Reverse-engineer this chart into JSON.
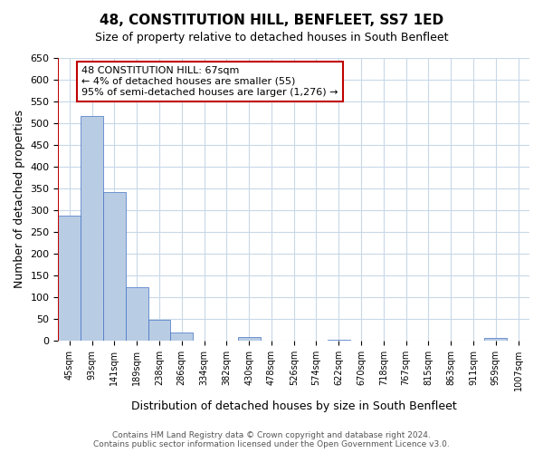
{
  "title": "48, CONSTITUTION HILL, BENFLEET, SS7 1ED",
  "subtitle": "Size of property relative to detached houses in South Benfleet",
  "bar_values": [
    287,
    516,
    341,
    122,
    48,
    19,
    0,
    0,
    7,
    0,
    0,
    0,
    2,
    0,
    0,
    0,
    0,
    0,
    0,
    5,
    0
  ],
  "bar_labels": [
    "45sqm",
    "93sqm",
    "141sqm",
    "189sqm",
    "238sqm",
    "286sqm",
    "334sqm",
    "382sqm",
    "430sqm",
    "478sqm",
    "526sqm",
    "574sqm",
    "622sqm",
    "670sqm",
    "718sqm",
    "767sqm",
    "815sqm",
    "863sqm",
    "911sqm",
    "959sqm",
    "1007sqm"
  ],
  "bar_color": "#b8cce4",
  "bar_edge_color": "#4472c4",
  "ylabel": "Number of detached properties",
  "xlabel": "Distribution of detached houses by size in South Benfleet",
  "ylim": [
    0,
    650
  ],
  "yticks": [
    0,
    50,
    100,
    150,
    200,
    250,
    300,
    350,
    400,
    450,
    500,
    550,
    600,
    650
  ],
  "vline_color": "#c00000",
  "annotation_title": "48 CONSTITUTION HILL: 67sqm",
  "annotation_line2": "← 4% of detached houses are smaller (55)",
  "annotation_line3": "95% of semi-detached houses are larger (1,276) →",
  "annotation_box_color": "#c00000",
  "grid_color": "#c8d8e8",
  "background_color": "#ffffff",
  "footer_line1": "Contains HM Land Registry data © Crown copyright and database right 2024.",
  "footer_line2": "Contains public sector information licensed under the Open Government Licence v3.0."
}
